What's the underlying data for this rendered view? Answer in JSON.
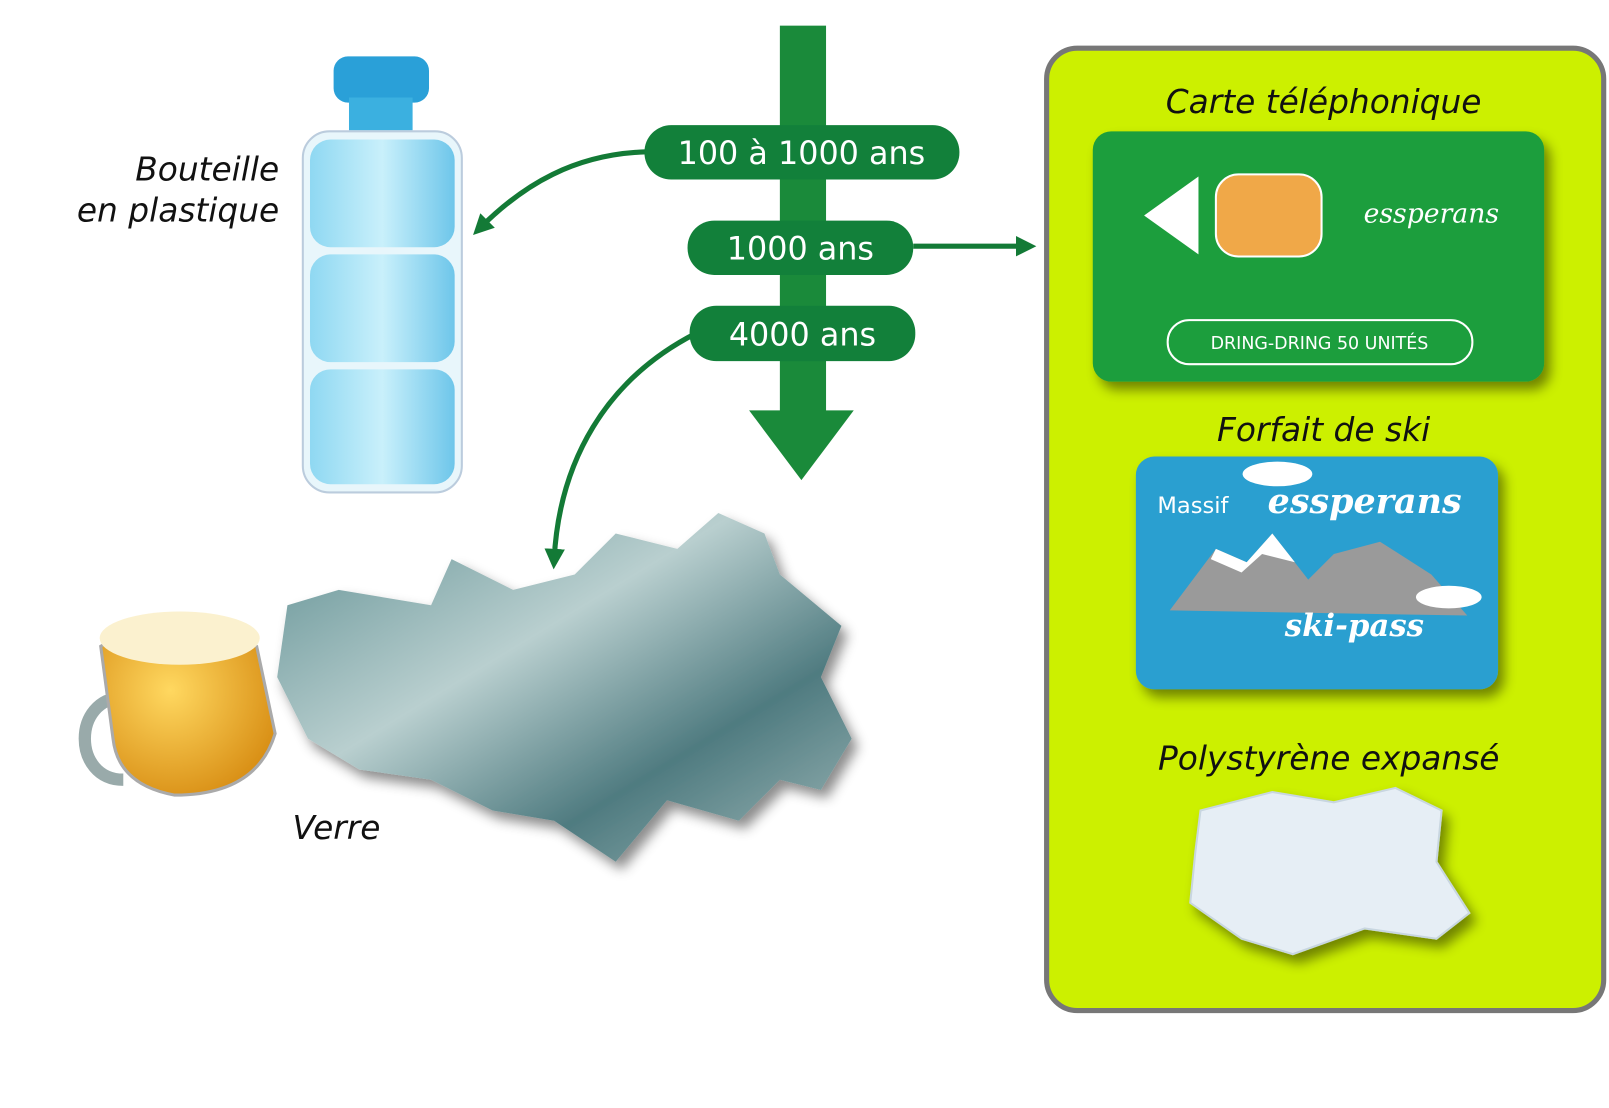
{
  "timeline": {
    "durations": [
      "100 à 1000 ans",
      "1000 ans",
      "4000 ans"
    ]
  },
  "items": {
    "bottle": [
      "Bouteille",
      "en plastique"
    ],
    "glass": "Verre"
  },
  "panel": {
    "phone_card": {
      "title": "Carte téléphonique",
      "brand": "essperans",
      "units": "DRING-DRING 50 UNITÉS"
    },
    "ski_pass": {
      "title": "Forfait de ski",
      "massif": "Massif",
      "brand": "essperans",
      "pass": "ski-pass"
    },
    "polystyrene": {
      "title": "Polystyrène expansé"
    }
  }
}
